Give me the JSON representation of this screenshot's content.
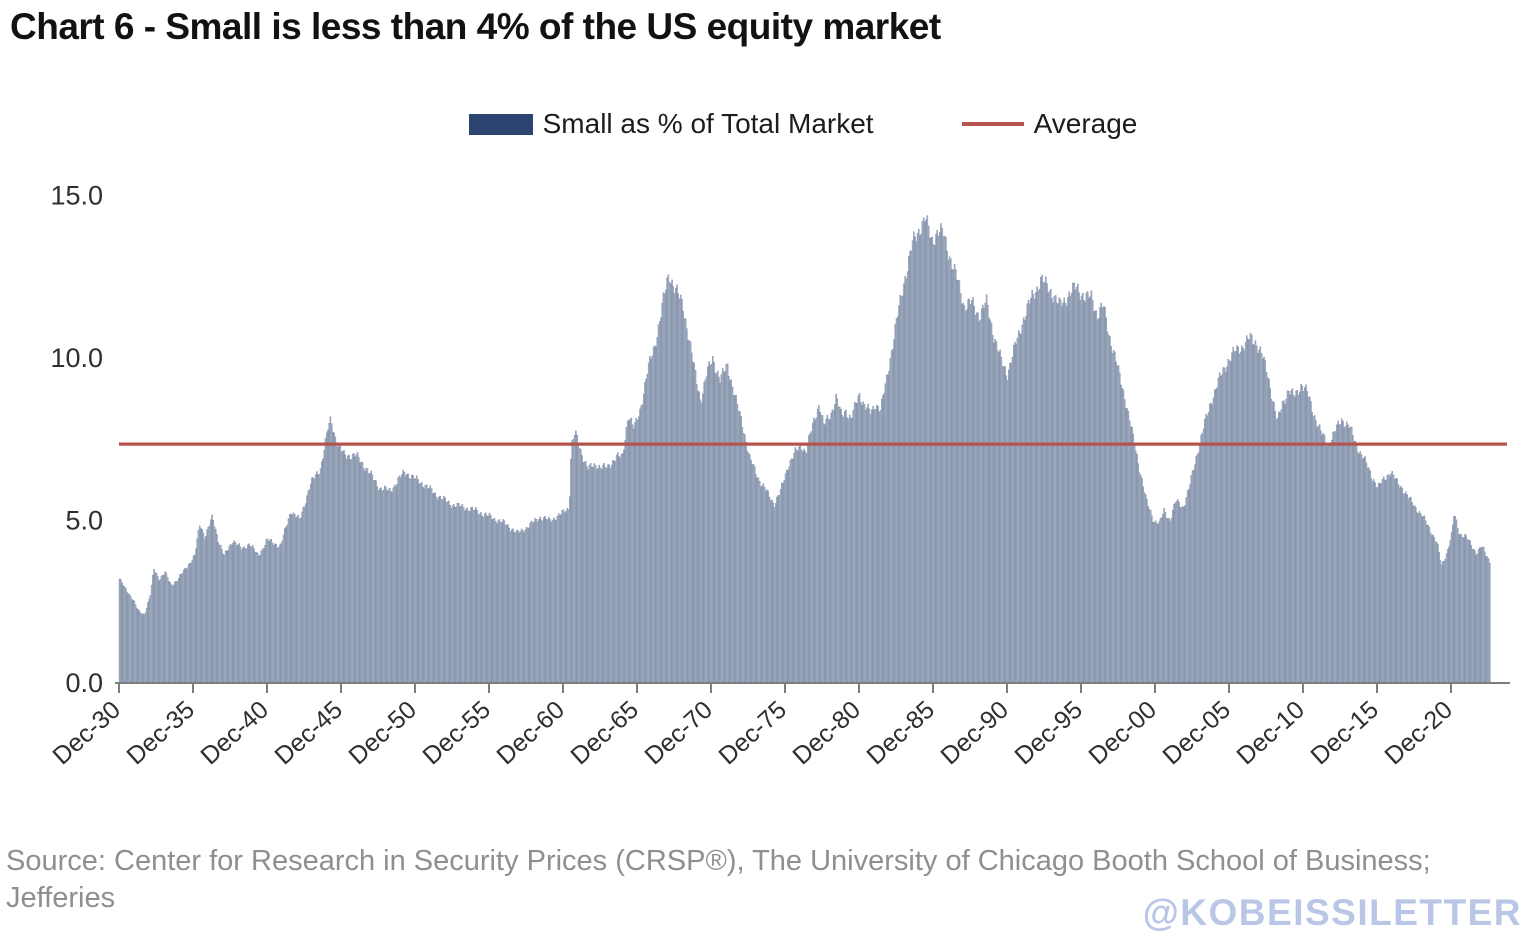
{
  "title": "Chart 6 - Small is less than 4% of the US equity market",
  "legend": {
    "series_label": "Small as % of Total Market",
    "average_label": "Average"
  },
  "source": "Source: Center for Research in Security Prices (CRSP®), The University of Chicago Booth School of Business; Jefferies",
  "watermark": "@KOBEISSILETTER",
  "colors": {
    "bar_fill": "#aab6c8",
    "bar_edge": "#6a7a97",
    "legend_swatch": "#2b4570",
    "average_line": "#b5544d",
    "axis": "#7d7d7d",
    "tick_label": "#2f2f2f",
    "source_text": "#8f8f8f",
    "watermark_text": "#b9c6e6"
  },
  "chart_data": {
    "type": "bar",
    "title": "Chart 6 - Small is less than 4% of the US equity market",
    "xlabel": "",
    "ylabel": "",
    "ylim": [
      0,
      15
    ],
    "grid": false,
    "legend_position": "top-center",
    "yticks": [
      {
        "value": 0,
        "label": "0.0"
      },
      {
        "value": 5,
        "label": "5.0"
      },
      {
        "value": 10,
        "label": "10.0"
      },
      {
        "value": 15,
        "label": "15.0"
      }
    ],
    "xtick_labels": [
      "Dec-30",
      "Dec-35",
      "Dec-40",
      "Dec-45",
      "Dec-50",
      "Dec-55",
      "Dec-60",
      "Dec-65",
      "Dec-70",
      "Dec-75",
      "Dec-80",
      "Dec-85",
      "Dec-90",
      "Dec-95",
      "Dec-00",
      "Dec-05",
      "Dec-10",
      "Dec-15",
      "Dec-20"
    ],
    "xtick_start_year": 1930.92,
    "xtick_interval_years": 5,
    "x_start_year": 1930.92,
    "x_end_year": 2023.58,
    "sampling": "monthly bars; values interpolated between anchor points read from the chart",
    "average_line": {
      "label": "Average",
      "value": 7.35
    },
    "series": [
      {
        "name": "Small as % of Total Market",
        "unit": "% of total US equity market cap",
        "anchor_points": [
          [
            1930.92,
            3.2
          ],
          [
            1931.3,
            2.9
          ],
          [
            1931.8,
            2.6
          ],
          [
            1932.2,
            2.2
          ],
          [
            1932.6,
            2.1
          ],
          [
            1933.0,
            2.7
          ],
          [
            1933.25,
            3.5
          ],
          [
            1933.6,
            3.2
          ],
          [
            1934.0,
            3.4
          ],
          [
            1934.4,
            3.0
          ],
          [
            1934.9,
            3.2
          ],
          [
            1935.5,
            3.6
          ],
          [
            1936.0,
            3.9
          ],
          [
            1936.35,
            4.9
          ],
          [
            1936.7,
            4.5
          ],
          [
            1937.2,
            5.1
          ],
          [
            1937.6,
            4.4
          ],
          [
            1938.0,
            3.9
          ],
          [
            1938.6,
            4.4
          ],
          [
            1939.2,
            4.1
          ],
          [
            1939.7,
            4.3
          ],
          [
            1940.3,
            3.9
          ],
          [
            1940.9,
            4.4
          ],
          [
            1941.8,
            4.2
          ],
          [
            1942.5,
            5.3
          ],
          [
            1943.1,
            5.0
          ],
          [
            1943.8,
            6.1
          ],
          [
            1944.5,
            6.6
          ],
          [
            1945.0,
            7.8
          ],
          [
            1945.2,
            8.1
          ],
          [
            1945.6,
            7.4
          ],
          [
            1946.1,
            7.0
          ],
          [
            1946.9,
            7.0
          ],
          [
            1947.6,
            6.6
          ],
          [
            1948.5,
            6.0
          ],
          [
            1949.2,
            5.9
          ],
          [
            1950.2,
            6.5
          ],
          [
            1950.8,
            6.3
          ],
          [
            1951.5,
            6.1
          ],
          [
            1952.3,
            5.8
          ],
          [
            1953.3,
            5.5
          ],
          [
            1954.2,
            5.4
          ],
          [
            1955.0,
            5.3
          ],
          [
            1956.0,
            5.1
          ],
          [
            1957.0,
            4.9
          ],
          [
            1957.8,
            4.6
          ],
          [
            1958.5,
            4.8
          ],
          [
            1959.3,
            5.1
          ],
          [
            1960.0,
            5.0
          ],
          [
            1960.8,
            5.2
          ],
          [
            1961.3,
            5.4
          ],
          [
            1961.45,
            7.3
          ],
          [
            1961.7,
            7.7
          ],
          [
            1962.1,
            7.1
          ],
          [
            1962.6,
            6.6
          ],
          [
            1963.2,
            6.7
          ],
          [
            1963.9,
            6.6
          ],
          [
            1964.5,
            7.0
          ],
          [
            1964.9,
            6.9
          ],
          [
            1965.3,
            8.3
          ],
          [
            1965.7,
            7.8
          ],
          [
            1966.1,
            8.4
          ],
          [
            1966.6,
            9.6
          ],
          [
            1967.1,
            10.4
          ],
          [
            1967.6,
            11.6
          ],
          [
            1968.05,
            12.6
          ],
          [
            1968.4,
            12.2
          ],
          [
            1969.0,
            11.6
          ],
          [
            1969.4,
            10.6
          ],
          [
            1969.9,
            9.3
          ],
          [
            1970.2,
            8.7
          ],
          [
            1970.6,
            9.5
          ],
          [
            1971.0,
            10.0
          ],
          [
            1971.5,
            9.3
          ],
          [
            1972.0,
            9.8
          ],
          [
            1972.5,
            8.8
          ],
          [
            1973.0,
            8.0
          ],
          [
            1973.5,
            6.9
          ],
          [
            1974.2,
            6.2
          ],
          [
            1974.9,
            5.7
          ],
          [
            1975.15,
            5.5
          ],
          [
            1975.6,
            5.9
          ],
          [
            1976.1,
            6.7
          ],
          [
            1976.6,
            7.1
          ],
          [
            1977.0,
            7.3
          ],
          [
            1977.3,
            7.1
          ],
          [
            1977.8,
            8.0
          ],
          [
            1978.2,
            8.6
          ],
          [
            1978.5,
            7.9
          ],
          [
            1979.0,
            8.3
          ],
          [
            1979.35,
            8.8
          ],
          [
            1979.7,
            8.2
          ],
          [
            1980.0,
            8.4
          ],
          [
            1980.35,
            8.1
          ],
          [
            1980.9,
            8.9
          ],
          [
            1981.3,
            8.5
          ],
          [
            1981.7,
            8.3
          ],
          [
            1982.0,
            8.6
          ],
          [
            1982.35,
            8.4
          ],
          [
            1982.7,
            9.2
          ],
          [
            1983.0,
            10.0
          ],
          [
            1983.5,
            11.3
          ],
          [
            1984.0,
            12.5
          ],
          [
            1984.5,
            13.5
          ],
          [
            1985.0,
            14.0
          ],
          [
            1985.35,
            14.3
          ],
          [
            1985.8,
            13.6
          ],
          [
            1986.2,
            13.9
          ],
          [
            1986.6,
            13.8
          ],
          [
            1987.1,
            13.0
          ],
          [
            1987.6,
            12.3
          ],
          [
            1988.0,
            11.6
          ],
          [
            1988.5,
            11.7
          ],
          [
            1989.0,
            11.3
          ],
          [
            1989.5,
            11.7
          ],
          [
            1990.0,
            10.7
          ],
          [
            1990.5,
            9.9
          ],
          [
            1990.9,
            9.5
          ],
          [
            1991.4,
            10.3
          ],
          [
            1992.0,
            11.2
          ],
          [
            1992.6,
            11.9
          ],
          [
            1993.2,
            12.4
          ],
          [
            1993.8,
            12.1
          ],
          [
            1994.4,
            11.6
          ],
          [
            1995.0,
            11.9
          ],
          [
            1995.6,
            12.2
          ],
          [
            1996.2,
            11.8
          ],
          [
            1996.6,
            11.9
          ],
          [
            1997.0,
            11.3
          ],
          [
            1997.4,
            11.6
          ],
          [
            1997.8,
            10.7
          ],
          [
            1998.3,
            9.8
          ],
          [
            1998.8,
            8.9
          ],
          [
            1999.3,
            7.8
          ],
          [
            1999.8,
            6.7
          ],
          [
            2000.3,
            5.6
          ],
          [
            2000.8,
            5.0
          ],
          [
            2001.2,
            4.9
          ],
          [
            2001.5,
            5.3
          ],
          [
            2001.9,
            5.0
          ],
          [
            2002.3,
            5.6
          ],
          [
            2002.8,
            5.4
          ],
          [
            2003.2,
            6.0
          ],
          [
            2003.7,
            7.0
          ],
          [
            2004.2,
            7.9
          ],
          [
            2004.7,
            8.7
          ],
          [
            2005.2,
            9.3
          ],
          [
            2005.8,
            9.9
          ],
          [
            2006.3,
            10.2
          ],
          [
            2006.9,
            10.4
          ],
          [
            2007.3,
            10.6
          ],
          [
            2007.7,
            10.5
          ],
          [
            2008.1,
            10.1
          ],
          [
            2008.5,
            9.5
          ],
          [
            2008.9,
            8.6
          ],
          [
            2009.15,
            8.0
          ],
          [
            2009.5,
            8.6
          ],
          [
            2009.9,
            9.0
          ],
          [
            2010.3,
            8.8
          ],
          [
            2010.8,
            9.2
          ],
          [
            2011.2,
            8.9
          ],
          [
            2011.6,
            8.3
          ],
          [
            2012.1,
            7.7
          ],
          [
            2012.6,
            7.3
          ],
          [
            2013.0,
            7.7
          ],
          [
            2013.5,
            8.1
          ],
          [
            2014.0,
            7.9
          ],
          [
            2014.5,
            7.3
          ],
          [
            2015.0,
            6.9
          ],
          [
            2015.5,
            6.4
          ],
          [
            2015.95,
            6.0
          ],
          [
            2016.4,
            6.3
          ],
          [
            2016.8,
            6.5
          ],
          [
            2017.2,
            6.2
          ],
          [
            2017.6,
            6.0
          ],
          [
            2018.0,
            5.7
          ],
          [
            2018.5,
            5.4
          ],
          [
            2019.0,
            5.1
          ],
          [
            2019.5,
            4.7
          ],
          [
            2019.95,
            4.3
          ],
          [
            2020.25,
            3.6
          ],
          [
            2020.6,
            4.0
          ],
          [
            2020.95,
            4.6
          ],
          [
            2021.1,
            5.2
          ],
          [
            2021.45,
            4.6
          ],
          [
            2021.9,
            4.5
          ],
          [
            2022.3,
            4.2
          ],
          [
            2022.6,
            4.0
          ],
          [
            2022.95,
            4.2
          ],
          [
            2023.3,
            3.9
          ],
          [
            2023.58,
            3.7
          ]
        ]
      }
    ]
  }
}
